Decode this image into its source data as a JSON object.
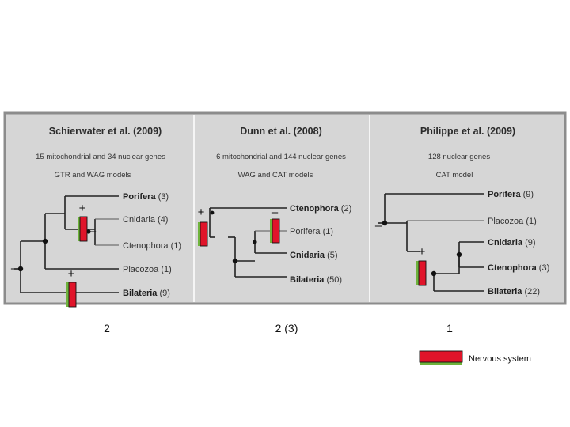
{
  "panels": [
    {
      "title": "Schierwater et al. (2009)",
      "genes": "15 mitochondrial and 34 nuclear genes",
      "models": "GTR and WAG models",
      "taxa": [
        {
          "name": "Porifera",
          "count": "(3)"
        },
        {
          "name": "Cnidaria",
          "count": "(4)"
        },
        {
          "name": "Ctenophora",
          "count": "(1)"
        },
        {
          "name": "Placozoa",
          "count": "(1)"
        },
        {
          "name": "Bilateria",
          "count": "(9)"
        }
      ],
      "signs": [
        "+",
        "–",
        "–",
        "+"
      ],
      "origins": "2"
    },
    {
      "title": "Dunn et al. (2008)",
      "genes": "6 mitochondrial and 144 nuclear genes",
      "models": "WAG and CAT models",
      "taxa": [
        {
          "name": "Ctenophora",
          "count": "(2)"
        },
        {
          "name": "Porifera",
          "count": "(1)"
        },
        {
          "name": "Cnidaria",
          "count": "(5)"
        },
        {
          "name": "Bilateria",
          "count": "(50)"
        }
      ],
      "signs": [
        "+",
        "–"
      ],
      "origins": "2 (3)"
    },
    {
      "title": "Philippe et al. (2009)",
      "genes": "128 nuclear genes",
      "models": "CAT model",
      "taxa": [
        {
          "name": "Porifera",
          "count": "(9)"
        },
        {
          "name": "Placozoa",
          "count": "(1)"
        },
        {
          "name": "Cnidaria",
          "count": "(9)"
        },
        {
          "name": "Ctenophora",
          "count": "(3)"
        },
        {
          "name": "Bilateria",
          "count": "(22)"
        }
      ],
      "signs": [
        "–",
        "+"
      ],
      "origins": "1"
    }
  ],
  "legend": {
    "label": "Nervous system"
  },
  "colors": {
    "bar_red": "#e0142a",
    "bar_green": "#6fb33c",
    "panel_bg": "#d6d6d6"
  }
}
